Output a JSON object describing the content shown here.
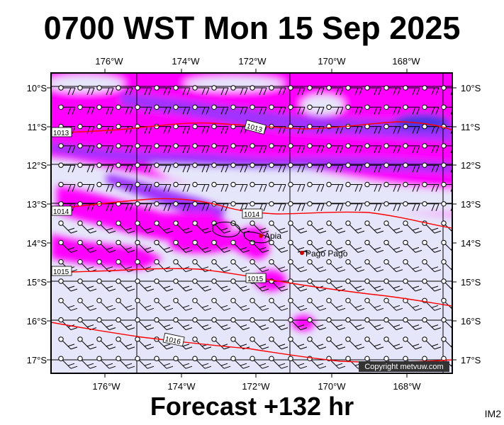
{
  "title": "0700 WST Mon 15 Sep 2025",
  "footer": "Forecast +132 hr",
  "code": "IM2",
  "copyright": "Copyright metvuw.com",
  "map": {
    "lon_labels": [
      "176°W",
      "174°W",
      "172°W",
      "170°W",
      "168°W"
    ],
    "lat_labels": [
      "10°S",
      "11°S",
      "12°S",
      "13°S",
      "14°S",
      "15°S",
      "16°S",
      "17°S"
    ],
    "isobar_labels": [
      "1013",
      "1013",
      "1014",
      "1014",
      "1015",
      "1015",
      "1016"
    ],
    "places": [
      "Apia",
      "Pago Pago"
    ],
    "colors": {
      "low": "#e6e6fa",
      "mid": "#ff00ff",
      "high": "#9a33ff",
      "peak": "#4a36e6",
      "isobar": "#ff0000",
      "frame": "#000000",
      "copyright_bg": "#333333"
    }
  }
}
